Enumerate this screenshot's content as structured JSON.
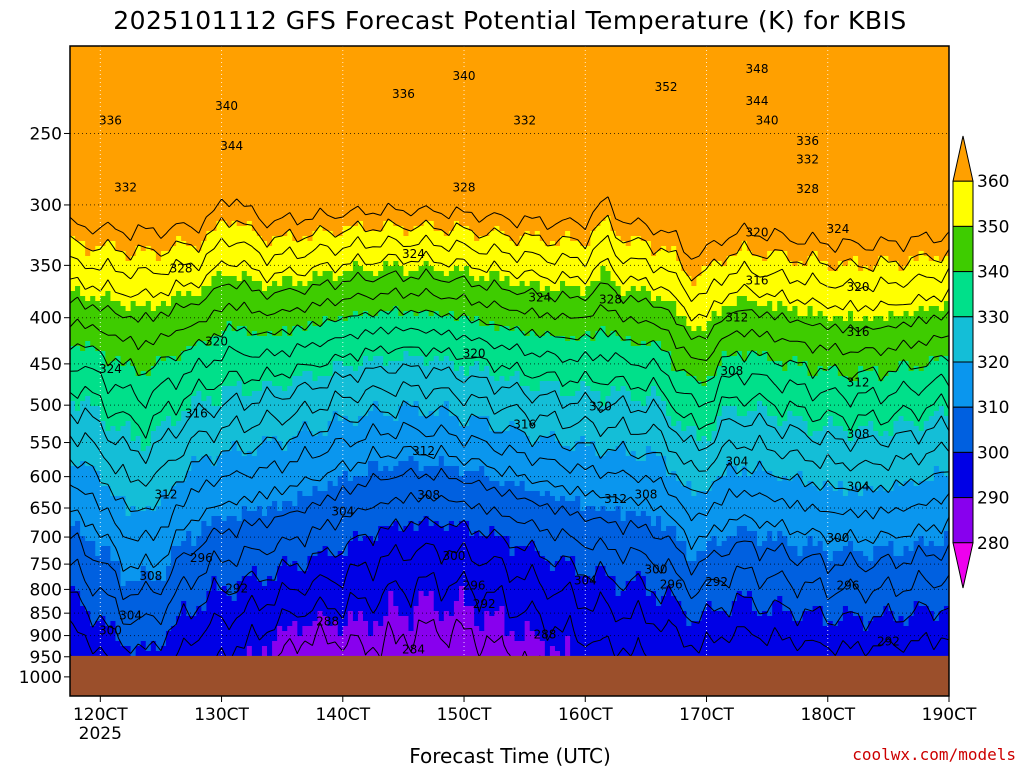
{
  "chart_data": {
    "type": "heatmap",
    "title": "2025101112 GFS Forecast Potential Temperature (K) for KBIS",
    "xlabel": "Forecast Time (UTC)",
    "ylabel": "",
    "credit": "coolwx.com/models",
    "x_ticks": [
      {
        "t": 0,
        "label": "120CT",
        "sub": "2025"
      },
      {
        "t": 24,
        "label": "130CT",
        "sub": ""
      },
      {
        "t": 48,
        "label": "140CT",
        "sub": ""
      },
      {
        "t": 72,
        "label": "150CT",
        "sub": ""
      },
      {
        "t": 96,
        "label": "160CT",
        "sub": ""
      },
      {
        "t": 120,
        "label": "170CT",
        "sub": ""
      },
      {
        "t": 144,
        "label": "180CT",
        "sub": ""
      },
      {
        "t": 168,
        "label": "190CT",
        "sub": ""
      }
    ],
    "xlim": [
      -6,
      168
    ],
    "y_ticks": [
      250,
      300,
      350,
      400,
      450,
      500,
      550,
      600,
      650,
      700,
      750,
      800,
      850,
      900,
      950,
      1000
    ],
    "ylim_hPa": [
      200,
      1050
    ],
    "y_scale": "log-pressure",
    "ground_pressure_hPa": 948,
    "colorbar": {
      "levels": [
        280,
        290,
        300,
        310,
        320,
        330,
        340,
        350,
        360
      ],
      "colors": [
        "#ee00ee",
        "#8800ee",
        "#0000e6",
        "#0060e0",
        "#0a96ee",
        "#14bed7",
        "#00e08a",
        "#3ecc00",
        "#ffff00",
        "#ffa000"
      ]
    },
    "ground_color": "#9b4f2b",
    "isentrope_labels": [
      {
        "value": 348,
        "t": 130,
        "p": 212
      },
      {
        "value": 352,
        "t": 112,
        "p": 222
      },
      {
        "value": 344,
        "t": 130,
        "p": 230
      },
      {
        "value": 340,
        "t": 132,
        "p": 242
      },
      {
        "value": 336,
        "t": 140,
        "p": 255
      },
      {
        "value": 332,
        "t": 140,
        "p": 267
      },
      {
        "value": 328,
        "t": 140,
        "p": 288
      },
      {
        "value": 324,
        "t": 146,
        "p": 319
      },
      {
        "value": 320,
        "t": 130,
        "p": 322
      },
      {
        "value": 320,
        "t": 150,
        "p": 370
      },
      {
        "value": 316,
        "t": 130,
        "p": 364
      },
      {
        "value": 316,
        "t": 150,
        "p": 415
      },
      {
        "value": 312,
        "t": 126,
        "p": 400
      },
      {
        "value": 312,
        "t": 150,
        "p": 472
      },
      {
        "value": 308,
        "t": 125,
        "p": 458
      },
      {
        "value": 308,
        "t": 150,
        "p": 538
      },
      {
        "value": 304,
        "t": 126,
        "p": 577
      },
      {
        "value": 304,
        "t": 150,
        "p": 615
      },
      {
        "value": 300,
        "t": 146,
        "p": 702
      },
      {
        "value": 296,
        "t": 148,
        "p": 792
      },
      {
        "value": 292,
        "t": 122,
        "p": 785
      },
      {
        "value": 292,
        "t": 156,
        "p": 914
      },
      {
        "value": 340,
        "t": 25,
        "p": 233
      },
      {
        "value": 344,
        "t": 26,
        "p": 258
      },
      {
        "value": 336,
        "t": 60,
        "p": 226
      },
      {
        "value": 340,
        "t": 72,
        "p": 216
      },
      {
        "value": 336,
        "t": 2,
        "p": 242
      },
      {
        "value": 332,
        "t": 5,
        "p": 287
      },
      {
        "value": 328,
        "t": 72,
        "p": 287
      },
      {
        "value": 332,
        "t": 84,
        "p": 242
      },
      {
        "value": 328,
        "t": 16,
        "p": 353
      },
      {
        "value": 324,
        "t": 62,
        "p": 340
      },
      {
        "value": 324,
        "t": 87,
        "p": 380
      },
      {
        "value": 328,
        "t": 101,
        "p": 382
      },
      {
        "value": 320,
        "t": 23,
        "p": 425
      },
      {
        "value": 324,
        "t": 2,
        "p": 456
      },
      {
        "value": 320,
        "t": 74,
        "p": 438
      },
      {
        "value": 316,
        "t": 19,
        "p": 511
      },
      {
        "value": 316,
        "t": 84,
        "p": 525
      },
      {
        "value": 312,
        "t": 64,
        "p": 562
      },
      {
        "value": 320,
        "t": 99,
        "p": 502
      },
      {
        "value": 312,
        "t": 13,
        "p": 628
      },
      {
        "value": 308,
        "t": 65,
        "p": 629
      },
      {
        "value": 304,
        "t": 48,
        "p": 656
      },
      {
        "value": 312,
        "t": 102,
        "p": 635
      },
      {
        "value": 308,
        "t": 108,
        "p": 628
      },
      {
        "value": 296,
        "t": 20,
        "p": 738
      },
      {
        "value": 292,
        "t": 27,
        "p": 798
      },
      {
        "value": 308,
        "t": 10,
        "p": 773
      },
      {
        "value": 304,
        "t": 6,
        "p": 855
      },
      {
        "value": 300,
        "t": 2,
        "p": 888
      },
      {
        "value": 300,
        "t": 70,
        "p": 735
      },
      {
        "value": 296,
        "t": 74,
        "p": 792
      },
      {
        "value": 292,
        "t": 76,
        "p": 830
      },
      {
        "value": 288,
        "t": 45,
        "p": 868
      },
      {
        "value": 288,
        "t": 88,
        "p": 897
      },
      {
        "value": 284,
        "t": 62,
        "p": 932
      },
      {
        "value": 304,
        "t": 96,
        "p": 782
      },
      {
        "value": 300,
        "t": 110,
        "p": 760
      },
      {
        "value": 296,
        "t": 113,
        "p": 790
      }
    ]
  }
}
